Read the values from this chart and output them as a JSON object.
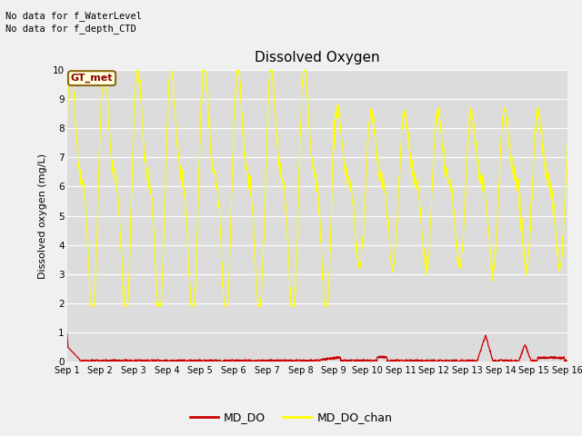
{
  "title": "Dissolved Oxygen",
  "ylabel": "Dissolved oxygen (mg/L)",
  "ylim": [
    0.0,
    10.0
  ],
  "yticks": [
    0.0,
    1.0,
    2.0,
    3.0,
    4.0,
    5.0,
    6.0,
    7.0,
    8.0,
    9.0,
    10.0
  ],
  "bg_color": "#dcdcdc",
  "fig_bg_color": "#f0f0f0",
  "note1": "No data for f_WaterLevel",
  "note2": "No data for f_depth_CTD",
  "gt_met_label": "GT_met",
  "legend_labels": [
    "MD_DO",
    "MD_DO_chan"
  ],
  "legend_colors": [
    "#cc0000",
    "#ffff00"
  ],
  "md_do_color": "#cc0000",
  "md_do_chan_color": "#ffff00",
  "x_tick_labels": [
    "Sep 1",
    "Sep 2",
    "Sep 3",
    "Sep 4",
    "Sep 5",
    "Sep 6",
    "Sep 7",
    "Sep 8",
    "Sep 9",
    "Sep 10",
    "Sep 11",
    "Sep 12",
    "Sep 13",
    "Sep 14",
    "Sep 15",
    "Sep 16"
  ]
}
